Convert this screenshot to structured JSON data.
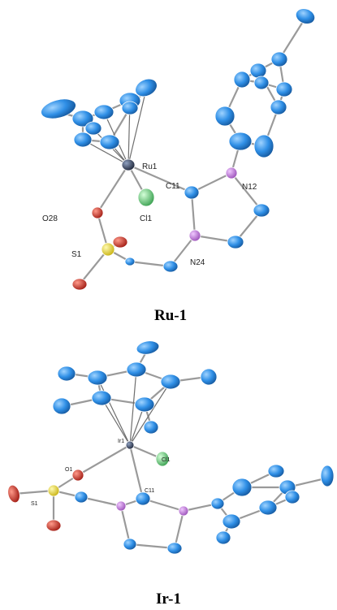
{
  "colors": {
    "carbon": "#2f8fe6",
    "nitrogen": "#c07ad6",
    "oxygen": "#d8322a",
    "sulfur": "#f2e23a",
    "chlorine": "#7cd68a",
    "metal": "#3a4a66",
    "bond": "#9a9a9a"
  },
  "ru1": {
    "caption": "Ru-1",
    "labels": {
      "ru": "Ru1",
      "c11": "C11",
      "n12": "N12",
      "o28": "O28",
      "cl1": "Cl1",
      "s1": "S1",
      "n24": "N24"
    }
  },
  "ir1": {
    "caption": "Ir-1",
    "labels": {
      "ir": "Ir1",
      "cl": "Cl1",
      "o1": "O1",
      "c11": "C11",
      "s1": "S1"
    }
  }
}
